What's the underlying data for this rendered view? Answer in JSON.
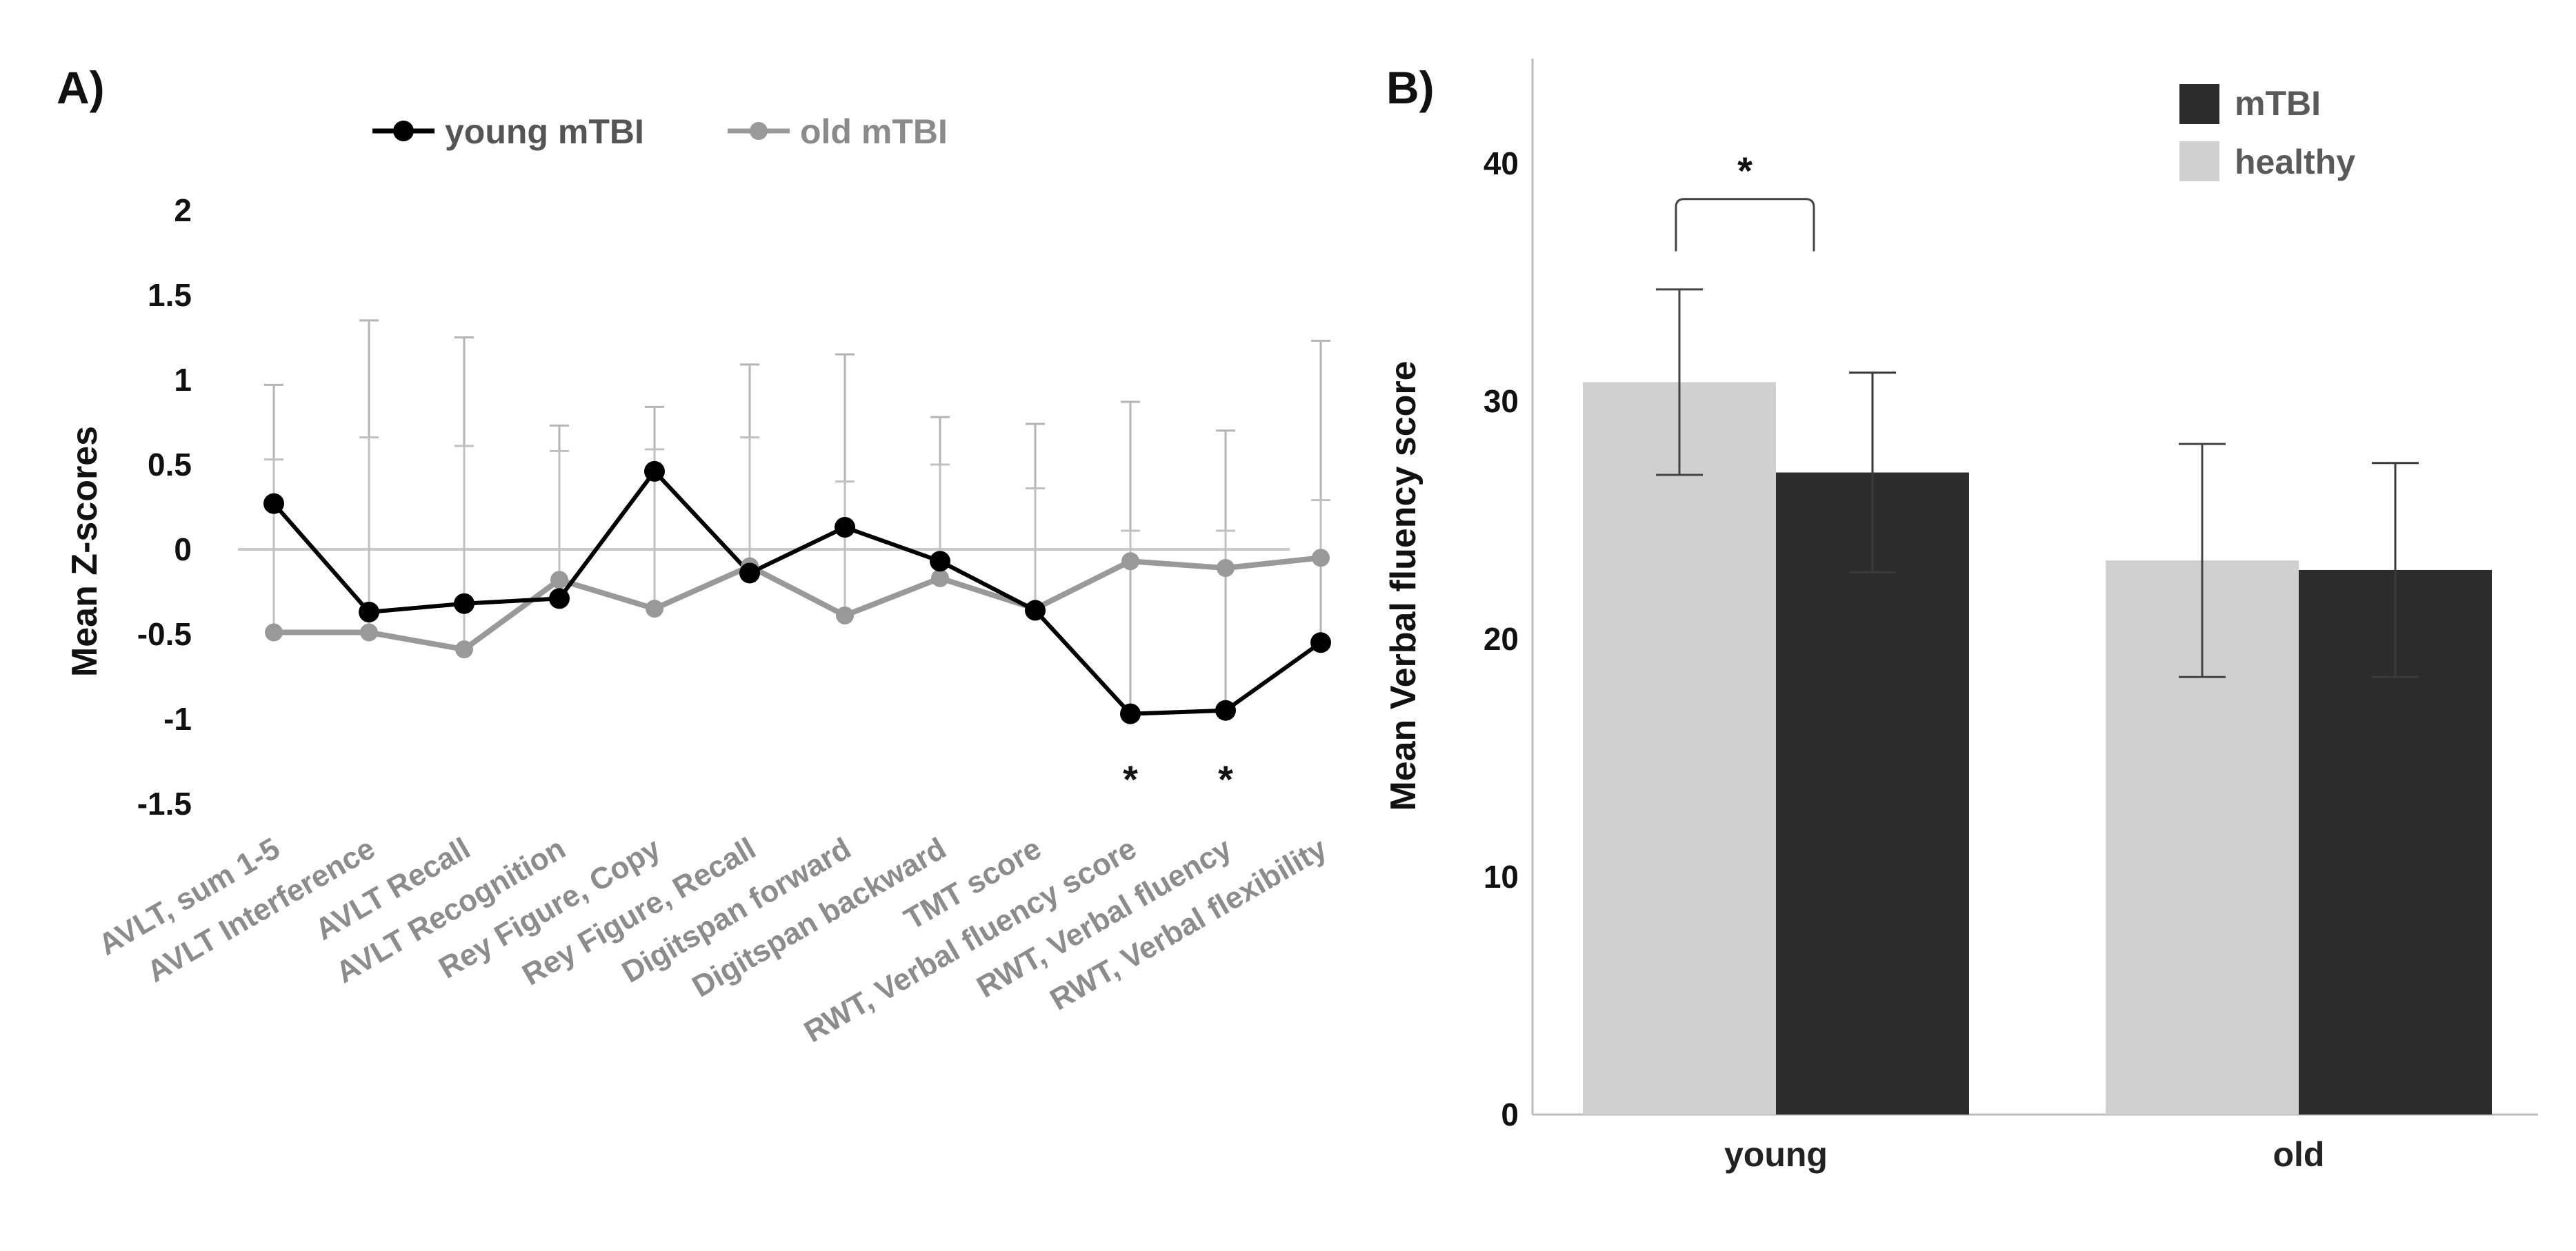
{
  "chart_data": [
    {
      "panel": "A)",
      "type": "line",
      "ylabel": "Mean Z-scores",
      "ylim": [
        -1.5,
        2
      ],
      "yticks": [
        "2",
        "1.5",
        "1",
        "0.5",
        "0",
        "-0.5",
        "-1",
        "-1.5"
      ],
      "yticks_values": [
        2,
        1.5,
        1,
        0.5,
        0,
        -0.5,
        -1,
        -1.5
      ],
      "categories": [
        "AVLT, sum 1-5",
        "AVLT Interference",
        "AVLT Recall",
        "AVLT Recognition",
        "Rey Figure, Copy",
        "Rey Figure, Recall",
        "Digitspan forward",
        "Digitspan backward",
        "TMT score",
        "RWT, Verbal fluency score",
        "RWT, Verbal fluency",
        "RWT, Verbal flexibility"
      ],
      "legend_position": "top",
      "series": [
        {
          "name": "young mTBI",
          "color": "#000000",
          "values": [
            0.27,
            -0.37,
            -0.32,
            -0.29,
            0.46,
            -0.14,
            0.13,
            -0.07,
            -0.36,
            -0.97,
            -0.95,
            -0.55
          ],
          "error_upper": [
            0.97,
            1.35,
            1.25,
            0.73,
            0.84,
            1.09,
            1.15,
            0.78,
            0.74,
            0.87,
            0.7,
            1.23
          ]
        },
        {
          "name": "old mTBI",
          "color": "#999999",
          "values": [
            -0.49,
            -0.49,
            -0.59,
            -0.18,
            -0.35,
            -0.1,
            -0.39,
            -0.17,
            -0.35,
            -0.07,
            -0.11,
            -0.05
          ],
          "error_upper": [
            0.53,
            0.66,
            0.61,
            0.58,
            0.59,
            0.66,
            0.4,
            0.5,
            0.36,
            0.11,
            0.11,
            0.29
          ]
        }
      ],
      "significance_markers": [
        {
          "category": "RWT, Verbal fluency score",
          "text": "*"
        },
        {
          "category": "RWT, Verbal fluency",
          "text": "*"
        }
      ]
    },
    {
      "panel": "B)",
      "type": "bar",
      "ylabel": "Mean Verbal fluency score",
      "ylim": [
        0,
        44
      ],
      "yticks": [
        "40",
        "30",
        "20",
        "10",
        "0"
      ],
      "yticks_values": [
        40,
        30,
        20,
        10,
        0
      ],
      "categories": [
        "young",
        "old"
      ],
      "legend_position": "top-right",
      "series": [
        {
          "name": "healthy",
          "color": "#d0d0d0",
          "values": [
            30.8,
            23.3
          ],
          "error": [
            3.9,
            4.9
          ]
        },
        {
          "name": "mTBI",
          "color": "#2c2c2c",
          "values": [
            27.0,
            22.9
          ],
          "error": [
            4.2,
            4.5
          ]
        }
      ],
      "legend_order": [
        "mTBI",
        "healthy"
      ],
      "significance_bracket": {
        "category": "young",
        "text": "*"
      }
    }
  ]
}
